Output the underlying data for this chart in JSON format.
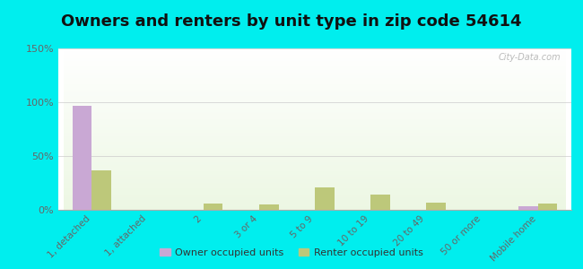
{
  "title": "Owners and renters by unit type in zip code 54614",
  "categories": [
    "1, detached",
    "1, attached",
    "2",
    "3 or 4",
    "5 to 9",
    "10 to 19",
    "20 to 49",
    "50 or more",
    "Mobile home"
  ],
  "owner_values": [
    97,
    0,
    0,
    0,
    0,
    0,
    0,
    0,
    3
  ],
  "renter_values": [
    37,
    0,
    6,
    5,
    21,
    14,
    7,
    0,
    6
  ],
  "owner_color": "#c9a8d4",
  "renter_color": "#bdc87a",
  "outer_bg": "#00eeee",
  "ylim": [
    0,
    150
  ],
  "yticks": [
    0,
    50,
    100,
    150
  ],
  "ytick_labels": [
    "0%",
    "50%",
    "100%",
    "150%"
  ],
  "bar_width": 0.35,
  "legend_owner": "Owner occupied units",
  "legend_renter": "Renter occupied units",
  "title_fontsize": 13,
  "watermark": "City-Data.com"
}
